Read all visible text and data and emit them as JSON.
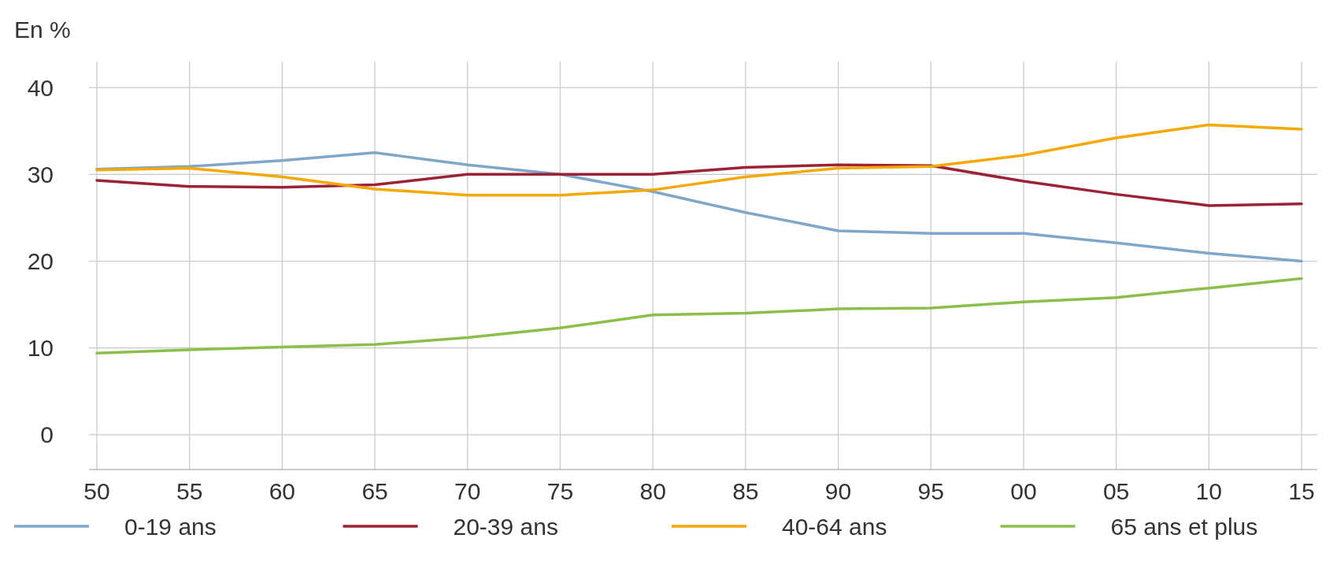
{
  "chart_data": {
    "type": "line",
    "ylabel": "En %",
    "categories": [
      "50",
      "55",
      "60",
      "65",
      "70",
      "75",
      "80",
      "85",
      "90",
      "95",
      "00",
      "05",
      "10",
      "15"
    ],
    "series": [
      {
        "name": "0-19 ans",
        "color": "#7fa7ca",
        "values": [
          30.6,
          30.9,
          31.6,
          32.5,
          31.1,
          30.0,
          28.0,
          25.6,
          23.5,
          23.2,
          23.2,
          22.1,
          20.9,
          20.0
        ]
      },
      {
        "name": "20-39 ans",
        "color": "#9b2335",
        "values": [
          29.3,
          28.6,
          28.5,
          28.8,
          30.0,
          30.0,
          30.0,
          30.8,
          31.1,
          31.0,
          29.2,
          27.7,
          26.4,
          26.6
        ]
      },
      {
        "name": "40-64 ans",
        "color": "#f5a800",
        "values": [
          30.5,
          30.7,
          29.7,
          28.3,
          27.6,
          27.6,
          28.2,
          29.7,
          30.7,
          30.9,
          32.2,
          34.2,
          35.7,
          35.2
        ]
      },
      {
        "name": "65 ans et plus",
        "color": "#8cbf4a",
        "values": [
          9.4,
          9.8,
          10.1,
          10.4,
          11.2,
          12.3,
          13.8,
          14.0,
          14.5,
          14.6,
          15.3,
          15.8,
          16.9,
          18.0
        ]
      }
    ],
    "ylim": [
      -4,
      43
    ],
    "yticks": [
      0,
      10,
      20,
      30,
      40
    ],
    "grid": true,
    "legend": "bottom",
    "marker": "none",
    "line_style": "solid"
  }
}
